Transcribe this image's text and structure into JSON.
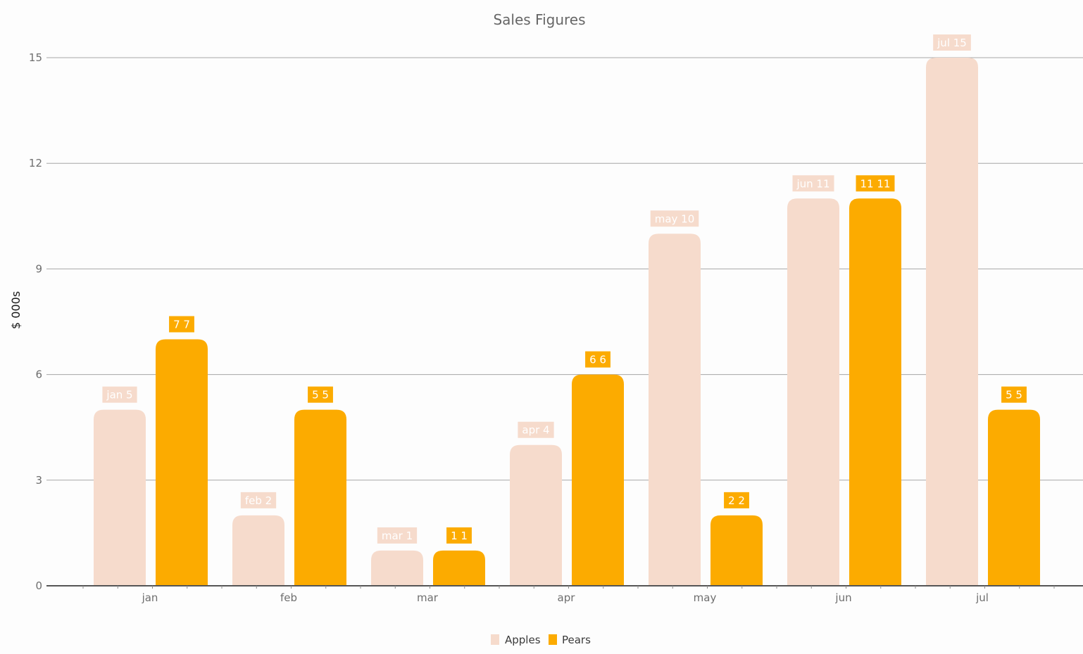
{
  "chart_data": {
    "type": "bar",
    "title": "Sales Figures",
    "xlabel": "",
    "ylabel": "$ 000s",
    "categories": [
      "jan",
      "feb",
      "mar",
      "apr",
      "may",
      "jun",
      "jul"
    ],
    "series": [
      {
        "name": "Apples",
        "color": "#f6dbcc",
        "values": [
          5,
          2,
          1,
          4,
          10,
          11,
          15
        ],
        "labels": [
          "jan 5",
          "feb 2",
          "mar 1",
          "apr 4",
          "may 10",
          "jun 11",
          "jul 15"
        ]
      },
      {
        "name": "Pears",
        "color": "#fcab00",
        "values": [
          7,
          5,
          1,
          6,
          2,
          11,
          5
        ],
        "labels": [
          "7 7",
          "5 5",
          "1 1",
          "6 6",
          "2 2",
          "11 11",
          "5 5"
        ]
      }
    ],
    "ylim": [
      0,
      15
    ],
    "yticks": [
      0,
      3,
      6,
      9,
      12,
      15
    ],
    "grid": true,
    "legend_position": "bottom-center",
    "data_labels": true
  }
}
